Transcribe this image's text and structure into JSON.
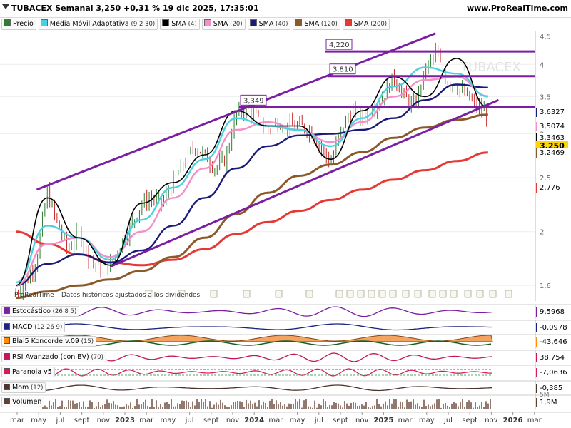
{
  "header": {
    "title": "TUBACEX Semanal 3,250 +0,31 % 19 dic 2025, 17:35:01",
    "site": "www.ProRealTime.com"
  },
  "legend": [
    {
      "label": "Precio",
      "params": "",
      "color": "#2e7d32"
    },
    {
      "label": "Media Móvil Adaptativa",
      "params": "(9 2 30)",
      "color": "#4dd0e1"
    },
    {
      "label": "SMA",
      "params": "(4)",
      "color": "#000000"
    },
    {
      "label": "SMA",
      "params": "(20)",
      "color": "#f48fc7"
    },
    {
      "label": "SMA",
      "params": "(40)",
      "color": "#1a1a7a"
    },
    {
      "label": "SMA",
      "params": "(120)",
      "color": "#8b5a2b"
    },
    {
      "label": "SMA",
      "params": "(200)",
      "color": "#e53935"
    }
  ],
  "watermark": "TUBACEX",
  "footnote_left": "ProRealTime",
  "footnote": "Datos históricos ajustados a los dividendos",
  "chart_data": {
    "type": "line",
    "x_axis": {
      "labels": [
        "mar",
        "may",
        "jul",
        "sept",
        "nov",
        "2023",
        "mar",
        "may",
        "jul",
        "sept",
        "nov",
        "2024",
        "mar",
        "may",
        "jul",
        "sept",
        "nov",
        "2025",
        "mar",
        "may",
        "jul",
        "sept",
        "nov",
        "2026",
        "mar"
      ]
    },
    "y_axis": {
      "ticks": [
        "1,6",
        "2",
        "2,5",
        "3",
        "3,5",
        "4",
        "4,5"
      ],
      "tick_values": [
        1.6,
        2,
        2.5,
        3,
        3.5,
        4,
        4.5
      ],
      "range": [
        1.5,
        4.6
      ],
      "scale": "log"
    },
    "price": {
      "x": [
        "2022-03",
        "2022-04",
        "2022-05",
        "2022-06",
        "2022-07",
        "2022-08",
        "2022-09",
        "2022-10",
        "2022-11",
        "2022-12",
        "2023-01",
        "2023-02",
        "2023-03",
        "2023-04",
        "2023-05",
        "2023-06",
        "2023-07",
        "2023-08",
        "2023-09",
        "2023-10",
        "2023-11",
        "2023-12",
        "2024-01",
        "2024-02",
        "2024-03",
        "2024-04",
        "2024-05",
        "2024-06",
        "2024-07",
        "2024-08",
        "2024-09",
        "2024-10",
        "2024-11",
        "2024-12",
        "2025-01",
        "2025-02",
        "2025-03",
        "2025-04",
        "2025-05",
        "2025-06",
        "2025-07",
        "2025-08",
        "2025-09",
        "2025-10",
        "2025-11",
        "2025-12"
      ],
      "y": [
        1.55,
        1.62,
        1.78,
        2.35,
        2.05,
        1.85,
        2.0,
        1.78,
        1.72,
        1.74,
        1.9,
        2.05,
        2.25,
        2.3,
        2.25,
        2.45,
        2.65,
        2.85,
        2.75,
        2.6,
        2.7,
        3.25,
        3.35,
        3.2,
        3.05,
        3.15,
        3.1,
        3.1,
        3.05,
        2.85,
        2.65,
        3.05,
        3.3,
        3.2,
        3.35,
        3.5,
        3.8,
        3.5,
        3.35,
        3.9,
        4.2,
        3.75,
        3.65,
        3.5,
        3.35,
        3.25
      ]
    },
    "series": [
      {
        "name": "SMA (200)",
        "color": "#e53935",
        "x": [
          "2022-03",
          "2022-06",
          "2022-09",
          "2022-12",
          "2023-03",
          "2023-06",
          "2023-09",
          "2023-12",
          "2024-03",
          "2024-06",
          "2024-09",
          "2024-12",
          "2025-03",
          "2025-06",
          "2025-09",
          "2025-12"
        ],
        "y": [
          2.0,
          1.9,
          1.82,
          1.76,
          1.74,
          1.78,
          1.86,
          1.98,
          2.08,
          2.18,
          2.28,
          2.38,
          2.48,
          2.58,
          2.68,
          2.776
        ]
      },
      {
        "name": "SMA (120)",
        "color": "#8b5a2b",
        "x": [
          "2022-03",
          "2022-06",
          "2022-09",
          "2022-12",
          "2023-03",
          "2023-06",
          "2023-09",
          "2023-12",
          "2024-03",
          "2024-06",
          "2024-09",
          "2024-12",
          "2025-03",
          "2025-06",
          "2025-09",
          "2025-12"
        ],
        "y": [
          1.52,
          1.56,
          1.6,
          1.64,
          1.7,
          1.8,
          1.95,
          2.15,
          2.35,
          2.52,
          2.64,
          2.78,
          2.95,
          3.08,
          3.18,
          3.2469
        ]
      },
      {
        "name": "SMA (40)",
        "color": "#1a1a7a",
        "x": [
          "2022-03",
          "2022-06",
          "2022-09",
          "2022-12",
          "2023-03",
          "2023-06",
          "2023-09",
          "2023-12",
          "2024-03",
          "2024-06",
          "2024-09",
          "2024-12",
          "2025-03",
          "2025-06",
          "2025-09",
          "2025-12"
        ],
        "y": [
          1.6,
          1.75,
          1.82,
          1.76,
          1.85,
          2.05,
          2.3,
          2.6,
          2.85,
          2.98,
          3.0,
          3.05,
          3.2,
          3.45,
          3.68,
          3.6327
        ]
      },
      {
        "name": "SMA (20)",
        "color": "#f48fc7",
        "x": [
          "2022-03",
          "2022-06",
          "2022-09",
          "2022-12",
          "2023-03",
          "2023-06",
          "2023-09",
          "2023-12",
          "2024-03",
          "2024-06",
          "2024-09",
          "2024-12",
          "2025-03",
          "2025-06",
          "2025-09",
          "2025-12"
        ],
        "y": [
          1.6,
          1.9,
          1.95,
          1.8,
          2.0,
          2.3,
          2.6,
          3.05,
          3.15,
          3.05,
          2.9,
          3.15,
          3.5,
          3.75,
          3.8,
          3.5074
        ]
      },
      {
        "name": "Media Móvil Adaptativa (9 2 30)",
        "color": "#4dd0e1",
        "x": [
          "2022-03",
          "2022-06",
          "2022-09",
          "2022-12",
          "2023-03",
          "2023-06",
          "2023-09",
          "2023-12",
          "2024-03",
          "2024-06",
          "2024-09",
          "2024-12",
          "2025-03",
          "2025-06",
          "2025-09",
          "2025-12"
        ],
        "y": [
          1.62,
          2.05,
          1.95,
          1.78,
          2.1,
          2.4,
          2.7,
          3.2,
          3.1,
          3.05,
          2.85,
          3.2,
          3.65,
          3.95,
          3.85,
          3.5
        ]
      },
      {
        "name": "SMA (4)",
        "color": "#000000",
        "x": [
          "2022-03",
          "2022-06",
          "2022-09",
          "2022-12",
          "2023-03",
          "2023-06",
          "2023-09",
          "2023-12",
          "2024-03",
          "2024-06",
          "2024-09",
          "2024-12",
          "2025-03",
          "2025-06",
          "2025-09",
          "2025-12"
        ],
        "y": [
          1.6,
          2.3,
          1.95,
          1.74,
          2.25,
          2.45,
          2.75,
          3.3,
          3.1,
          3.1,
          2.7,
          3.3,
          3.8,
          3.5,
          4.1,
          3.3463
        ]
      }
    ],
    "levels": [
      {
        "label": "4,220",
        "value": 4.22
      },
      {
        "label": "3,810",
        "value": 3.81
      },
      {
        "label": "3,349",
        "value": 3.349
      }
    ],
    "channel": {
      "upper": {
        "x": [
          "2022-05",
          "2025-07"
        ],
        "y": [
          2.38,
          4.55
        ]
      },
      "lower": {
        "x": [
          "2022-12",
          "2026-01"
        ],
        "y": [
          1.73,
          3.45
        ]
      }
    },
    "last_values": [
      {
        "label": "3,6327",
        "color": "#1a1a7a"
      },
      {
        "label": "3,5074",
        "color": "#f48fc7"
      },
      {
        "label": "3,3463",
        "color": "#000000"
      },
      {
        "label": "3,250",
        "color": "#ffd600"
      },
      {
        "label": "3,2469",
        "color": "#8b5a2b"
      },
      {
        "label": "2,776",
        "color": "#e53935"
      }
    ]
  },
  "panels": [
    {
      "label": "Estocástico",
      "params": "(26 8 5)",
      "value": "9,5968",
      "color": "#7b1fa2"
    },
    {
      "label": "MACD",
      "params": "(12 26 9)",
      "value": "-0,0978",
      "color": "#1a237e"
    },
    {
      "label": "Blai5 Koncorde v.09",
      "params": "(15)",
      "value": "-43,646",
      "color": "#ff8f00"
    },
    {
      "label": "RSI Avanzado (con BV)",
      "params": "(70)",
      "value": "38,754",
      "color": "#c2185b"
    },
    {
      "label": "Paranoia v5",
      "params": "",
      "value": "-7,0636",
      "color": "#d81b60"
    },
    {
      "label": "Mom",
      "params": "(12)",
      "value": "-0,385",
      "color": "#4e342e"
    },
    {
      "label": "Volumen",
      "params": "",
      "value": "1,9M",
      "value2": "5M",
      "color": "#5d4037"
    }
  ]
}
